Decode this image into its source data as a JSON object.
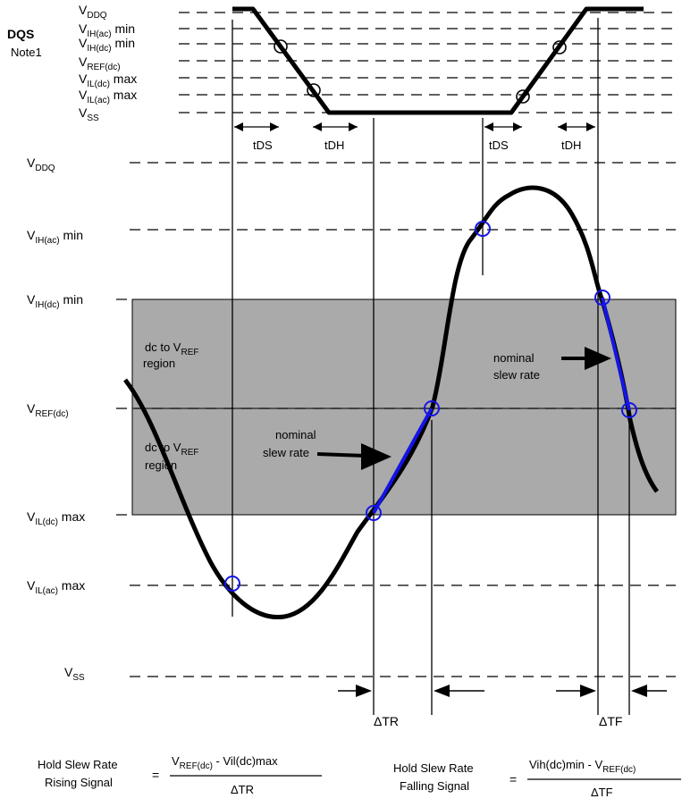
{
  "dqs": {
    "title": "DQS",
    "note": "Note1",
    "levels": [
      {
        "main": "V",
        "sub": "DDQ",
        "suffix": ""
      },
      {
        "main": "V",
        "sub": "IH(ac)",
        "suffix": " min"
      },
      {
        "main": "V",
        "sub": "IH(dc)",
        "suffix": " min"
      },
      {
        "main": "V",
        "sub": "REF(dc)",
        "suffix": ""
      },
      {
        "main": "V",
        "sub": "IL(dc)",
        "suffix": " max"
      },
      {
        "main": "V",
        "sub": "IL(ac)",
        "suffix": " max"
      },
      {
        "main": "V",
        "sub": "SS",
        "suffix": ""
      }
    ],
    "timing": [
      "tDS",
      "tDH",
      "tDS",
      "tDH"
    ]
  },
  "data": {
    "levels": [
      {
        "main": "V",
        "sub": "DDQ",
        "suffix": ""
      },
      {
        "main": "V",
        "sub": "IH(ac)",
        "suffix": " min"
      },
      {
        "main": "V",
        "sub": "IH(dc)",
        "suffix": " min"
      },
      {
        "main": "V",
        "sub": "REF(dc)",
        "suffix": ""
      },
      {
        "main": "V",
        "sub": "IL(dc)",
        "suffix": " max"
      },
      {
        "main": "V",
        "sub": "IL(ac)",
        "suffix": " max"
      },
      {
        "main": "V",
        "sub": "SS",
        "suffix": ""
      }
    ],
    "region_upper": {
      "line1": "dc to V",
      "sub": "REF",
      "line2": "region"
    },
    "region_lower": {
      "line1": "dc to V",
      "sub": "REF",
      "line2": "region"
    },
    "nominal_rising": {
      "line1": "nominal",
      "line2": "slew rate"
    },
    "nominal_falling": {
      "line1": "nominal",
      "line2": "slew rate"
    },
    "delta_tr": "ΔTR",
    "delta_tf": "ΔTF"
  },
  "formulas": {
    "rising": {
      "left1": "Hold Slew Rate",
      "left2": "Rising Signal",
      "eq": "=",
      "num_main": "V",
      "num_sub": "REF(dc)",
      "num_rest": " - Vil(dc)max",
      "den": "ΔTR"
    },
    "falling": {
      "left1": "Hold Slew Rate",
      "left2": "Falling Signal",
      "eq": "=",
      "num_pre": "Vih(dc)min - V",
      "num_sub": "REF(dc)",
      "den": "ΔTF"
    }
  },
  "colors": {
    "region": "#aaaaaa",
    "nominal": "#1414e6"
  }
}
